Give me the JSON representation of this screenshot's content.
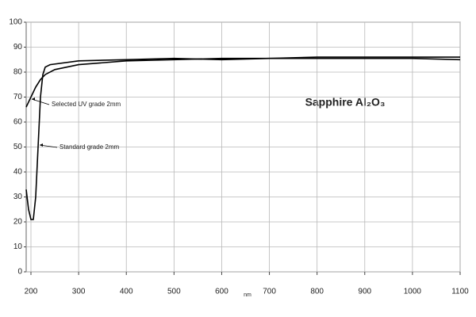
{
  "chart_data": {
    "type": "line",
    "annotation_title": "Sapphire Al₂O₃",
    "x_label": "nm",
    "annotations": [
      "Selected UV grade 2mm",
      "Standard grade 2mm"
    ],
    "xlim": [
      190,
      1100
    ],
    "ylim": [
      0,
      100
    ],
    "xticks": [
      200,
      300,
      400,
      500,
      600,
      700,
      800,
      900,
      1000,
      1100
    ],
    "yticks": [
      0,
      10,
      20,
      30,
      40,
      50,
      60,
      70,
      80,
      90,
      100
    ],
    "grid": true,
    "series": [
      {
        "name": "Selected UV grade 2mm",
        "color": "#000000",
        "x": [
          190,
          200,
          210,
          220,
          230,
          250,
          300,
          400,
          500,
          600,
          700,
          800,
          900,
          1000,
          1100
        ],
        "values": [
          66,
          70,
          74,
          77,
          79,
          81,
          83,
          84.5,
          85,
          85.5,
          85.5,
          86,
          86,
          86,
          86
        ]
      },
      {
        "name": "Standard grade 2mm",
        "color": "#000000",
        "x": [
          190,
          195,
          200,
          205,
          210,
          215,
          220,
          225,
          230,
          240,
          300,
          400,
          500,
          600,
          700,
          800,
          900,
          1000,
          1100
        ],
        "values": [
          33,
          25,
          21,
          21,
          30,
          50,
          70,
          79,
          82,
          83,
          84.5,
          85,
          85.5,
          85,
          85.5,
          85.5,
          85.5,
          85.5,
          85
        ]
      }
    ]
  }
}
